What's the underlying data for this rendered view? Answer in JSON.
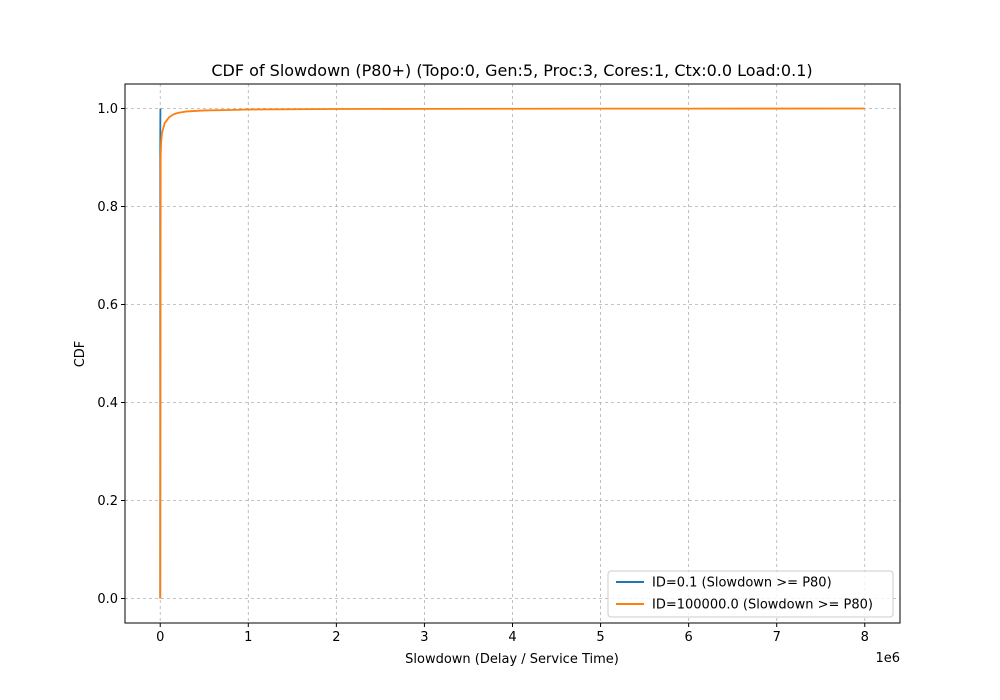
{
  "chart_data": {
    "type": "line",
    "title": "CDF of Slowdown (P80+) (Topo:0, Gen:5, Proc:3, Cores:1, Ctx:0.0 Load:0.1)",
    "xlabel": "Slowdown (Delay / Service Time)",
    "ylabel": "CDF",
    "x_offset_label": "1e6",
    "xlim": [
      -0.4,
      8.4
    ],
    "ylim": [
      -0.05,
      1.05
    ],
    "x_ticks": [
      0,
      1,
      2,
      3,
      4,
      5,
      6,
      7,
      8
    ],
    "x_tick_labels": [
      "0",
      "1",
      "2",
      "3",
      "4",
      "5",
      "6",
      "7",
      "8"
    ],
    "y_ticks": [
      0.0,
      0.2,
      0.4,
      0.6,
      0.8,
      1.0
    ],
    "y_tick_labels": [
      "0.0",
      "0.2",
      "0.4",
      "0.6",
      "0.8",
      "1.0"
    ],
    "grid": true,
    "legend_position": "lower-right",
    "series": [
      {
        "name": "ID=0.1 (Slowdown >= P80)",
        "color": "#1f77b4",
        "x": [
          0,
          0,
          0.001,
          0.002,
          0.003
        ],
        "y": [
          0.0,
          0.9,
          0.97,
          0.995,
          1.0
        ]
      },
      {
        "name": "ID=100000.0 (Slowdown >= P80)",
        "color": "#ff7f0e",
        "x": [
          0,
          0.005,
          0.01,
          0.02,
          0.05,
          0.1,
          0.15,
          0.2,
          0.3,
          0.5,
          0.8,
          1.0,
          1.5,
          2,
          3,
          4,
          5,
          6,
          7,
          8
        ],
        "y": [
          0.0,
          0.9,
          0.93,
          0.95,
          0.97,
          0.982,
          0.988,
          0.991,
          0.994,
          0.996,
          0.997,
          0.998,
          0.9985,
          0.999,
          0.9993,
          0.9995,
          0.9997,
          0.9998,
          0.9999,
          1.0
        ]
      }
    ]
  }
}
